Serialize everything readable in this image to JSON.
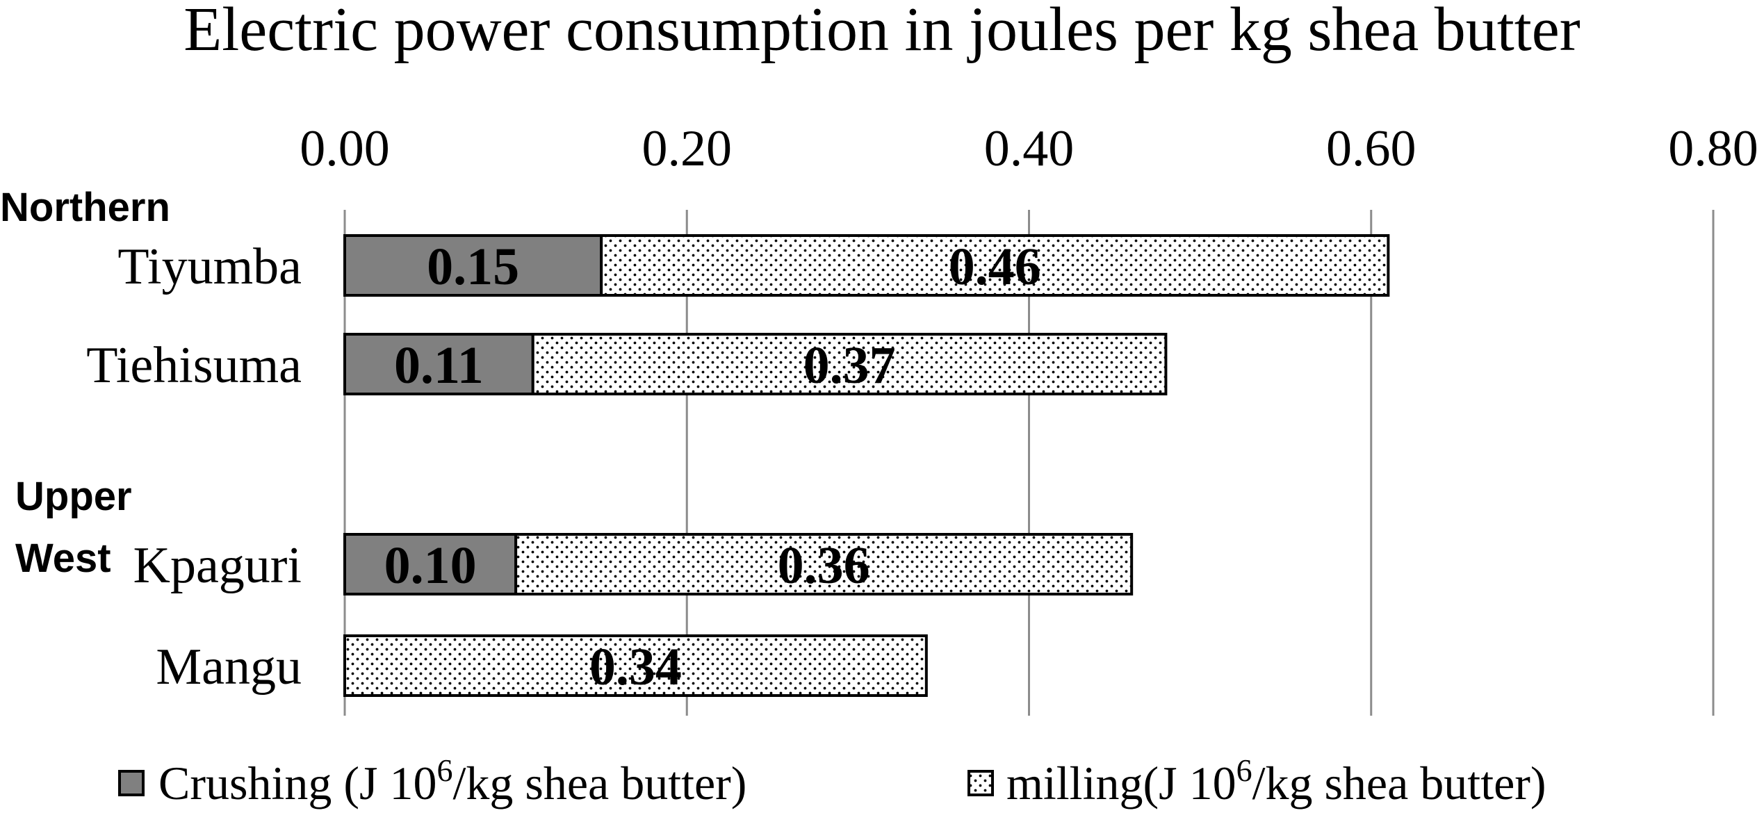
{
  "chart_data": {
    "type": "bar",
    "orientation": "horizontal",
    "stacked": true,
    "title": "Electric power consumption in joules per kg shea butter",
    "xlabel": "",
    "ylabel": "",
    "xlim": [
      0,
      0.8
    ],
    "x_ticks": [
      "0.00",
      "0.20",
      "0.40",
      "0.60",
      "0.80"
    ],
    "x_tick_values": [
      0,
      0.2,
      0.4,
      0.6,
      0.8
    ],
    "axis_position": "top",
    "grid": "vertical",
    "groups": [
      {
        "name": "Northern",
        "categories": [
          "Tiyumba",
          "Tiehisuma"
        ]
      },
      {
        "name": "Upper West",
        "name_lines": [
          "Upper",
          "West"
        ],
        "categories": [
          "Kpaguri",
          "Mangu"
        ]
      }
    ],
    "categories": [
      "Tiyumba",
      "Tiehisuma",
      "Kpaguri",
      "Mangu"
    ],
    "series": [
      {
        "name": "Crushing (J 10⁶/kg shea butter)",
        "name_parts": [
          "Crushing (J 10",
          "6",
          "/kg shea butter)"
        ],
        "pattern": "solid-gray",
        "color": "#808080",
        "values": [
          0.15,
          0.11,
          0.1,
          null
        ],
        "labels": [
          "0.15",
          "0.11",
          "0.10",
          ""
        ]
      },
      {
        "name": "milling(J 10⁶/kg shea butter)",
        "name_parts": [
          "milling(J 10",
          "6",
          "/kg shea butter)"
        ],
        "pattern": "dotted",
        "color": "#ffffff",
        "values": [
          0.46,
          0.37,
          0.36,
          0.34
        ],
        "labels": [
          "0.46",
          "0.37",
          "0.36",
          "0.34"
        ]
      }
    ],
    "legend_position": "bottom"
  }
}
